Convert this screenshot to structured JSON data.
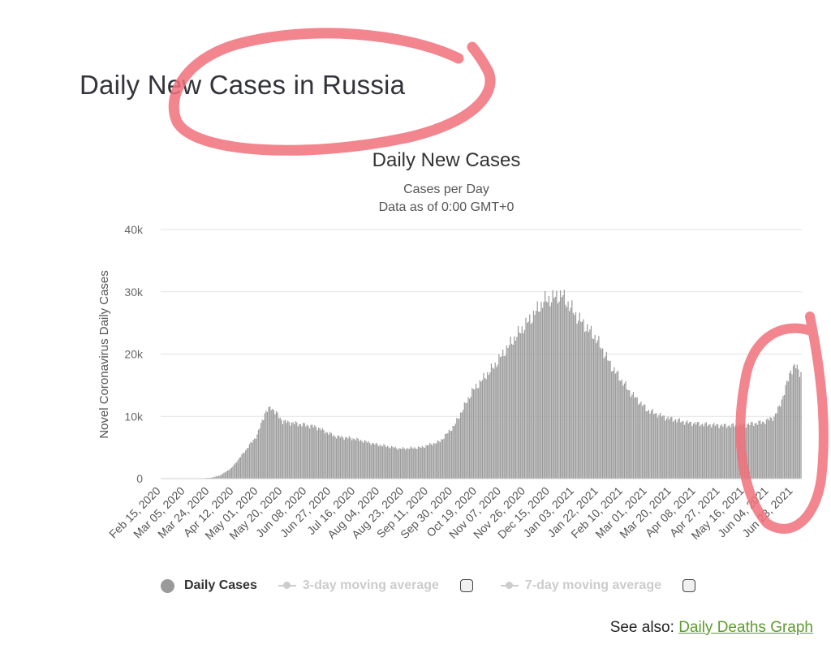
{
  "page": {
    "title": "Daily New Cases in Russia"
  },
  "chart_data": {
    "type": "bar",
    "title": "Daily New Cases",
    "subtitle_lines": [
      "Cases per Day",
      "Data as of 0:00 GMT+0"
    ],
    "ylabel": "Novel Coronavirus Daily Cases",
    "xlabel": "",
    "ylim": [
      0,
      40000
    ],
    "y_ticks": [
      {
        "value": 0,
        "label": "0"
      },
      {
        "value": 10000,
        "label": "10k"
      },
      {
        "value": 20000,
        "label": "20k"
      },
      {
        "value": 30000,
        "label": "30k"
      },
      {
        "value": 40000,
        "label": "40k"
      }
    ],
    "x_tick_labels": [
      "Feb 15, 2020",
      "Mar 05, 2020",
      "Mar 24, 2020",
      "Apr 12, 2020",
      "May 01, 2020",
      "May 20, 2020",
      "Jun 08, 2020",
      "Jun 27, 2020",
      "Jul 16, 2020",
      "Aug 04, 2020",
      "Aug 23, 2020",
      "Sep 11, 2020",
      "Sep 30, 2020",
      "Oct 19, 2020",
      "Nov 07, 2020",
      "Nov 26, 2020",
      "Dec 15, 2020",
      "Jan 03, 2021",
      "Jan 22, 2021",
      "Feb 10, 2021",
      "Mar 01, 2021",
      "Mar 20, 2021",
      "Apr 08, 2021",
      "Apr 27, 2021",
      "May 16, 2021",
      "Jun 04, 2021",
      "Jun 23, 2021"
    ],
    "grid": true,
    "bar_color": "#9a9a9a",
    "series": [
      {
        "name": "Daily Cases",
        "points": [
          {
            "date": "2020-02-15",
            "value": 0
          },
          {
            "date": "2020-03-15",
            "value": 10
          },
          {
            "date": "2020-03-25",
            "value": 150
          },
          {
            "date": "2020-04-01",
            "value": 500
          },
          {
            "date": "2020-04-10",
            "value": 1700
          },
          {
            "date": "2020-04-20",
            "value": 4300
          },
          {
            "date": "2020-04-30",
            "value": 7000
          },
          {
            "date": "2020-05-06",
            "value": 10500
          },
          {
            "date": "2020-05-11",
            "value": 11500
          },
          {
            "date": "2020-05-20",
            "value": 9200
          },
          {
            "date": "2020-06-01",
            "value": 8800
          },
          {
            "date": "2020-06-15",
            "value": 8300
          },
          {
            "date": "2020-06-30",
            "value": 6800
          },
          {
            "date": "2020-07-15",
            "value": 6400
          },
          {
            "date": "2020-08-01",
            "value": 5500
          },
          {
            "date": "2020-08-20",
            "value": 4800
          },
          {
            "date": "2020-09-05",
            "value": 5000
          },
          {
            "date": "2020-09-20",
            "value": 6000
          },
          {
            "date": "2020-10-01",
            "value": 8500
          },
          {
            "date": "2020-10-15",
            "value": 14000
          },
          {
            "date": "2020-11-01",
            "value": 18000
          },
          {
            "date": "2020-11-15",
            "value": 22000
          },
          {
            "date": "2020-12-01",
            "value": 26000
          },
          {
            "date": "2020-12-10",
            "value": 28500
          },
          {
            "date": "2020-12-24",
            "value": 29500
          },
          {
            "date": "2021-01-05",
            "value": 26000
          },
          {
            "date": "2021-01-20",
            "value": 22500
          },
          {
            "date": "2021-02-01",
            "value": 18000
          },
          {
            "date": "2021-02-15",
            "value": 14000
          },
          {
            "date": "2021-03-01",
            "value": 11000
          },
          {
            "date": "2021-03-15",
            "value": 9800
          },
          {
            "date": "2021-04-01",
            "value": 9000
          },
          {
            "date": "2021-04-15",
            "value": 8700
          },
          {
            "date": "2021-05-01",
            "value": 8500
          },
          {
            "date": "2021-05-15",
            "value": 8600
          },
          {
            "date": "2021-05-31",
            "value": 9100
          },
          {
            "date": "2021-06-08",
            "value": 9900
          },
          {
            "date": "2021-06-12",
            "value": 11500
          },
          {
            "date": "2021-06-17",
            "value": 14500
          },
          {
            "date": "2021-06-21",
            "value": 17500
          },
          {
            "date": "2021-06-25",
            "value": 18000
          },
          {
            "date": "2021-06-29",
            "value": 17000
          }
        ]
      }
    ]
  },
  "legend": {
    "daily_cases": "Daily Cases",
    "ma3": "3-day moving average",
    "ma7": "7-day moving average"
  },
  "see_also": {
    "prefix": "See also:",
    "link_text": "Daily Deaths Graph"
  },
  "annotation_color": "#f0707a"
}
